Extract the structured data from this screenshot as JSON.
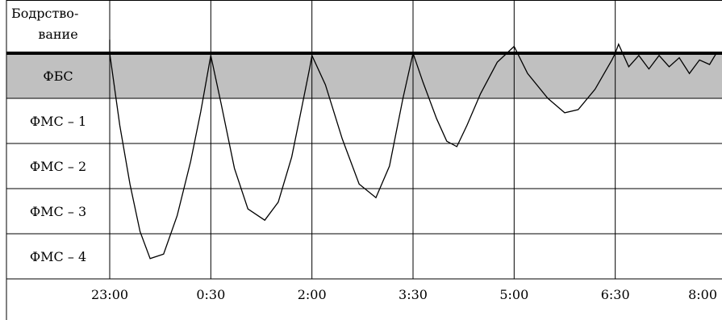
{
  "chart_data": {
    "type": "line",
    "title": "",
    "xlabel": "",
    "ylabel": "",
    "stages": [
      [
        "Бодрство-",
        "вание"
      ],
      [
        "ФБС"
      ],
      [
        "ФМС – 1"
      ],
      [
        "ФМС – 2"
      ],
      [
        "ФМС – 3"
      ],
      [
        "ФМС – 4"
      ]
    ],
    "highlight_stage_index": 1,
    "highlight_color": "#c0c0c0",
    "x_ticks": [
      "23:00",
      "0:30",
      "2:00",
      "3:30",
      "5:00",
      "6:30",
      "8:00"
    ],
    "x_range_hours": [
      23,
      32
    ],
    "y_axis_note": "depth in stage units: 0 = Бодрство-вание level line, 1 = ФБС/ФМС-1 boundary, each further unit one stage deeper",
    "series": [
      {
        "points": [
          [
            23.0,
            -0.3
          ],
          [
            23.0,
            0.0
          ],
          [
            23.15,
            1.6
          ],
          [
            23.3,
            2.9
          ],
          [
            23.45,
            3.95
          ],
          [
            23.6,
            4.55
          ],
          [
            23.8,
            4.45
          ],
          [
            24.0,
            3.6
          ],
          [
            24.2,
            2.4
          ],
          [
            24.35,
            1.3
          ],
          [
            24.5,
            0.05
          ],
          [
            24.65,
            1.1
          ],
          [
            24.85,
            2.55
          ],
          [
            25.05,
            3.45
          ],
          [
            25.3,
            3.7
          ],
          [
            25.5,
            3.3
          ],
          [
            25.7,
            2.3
          ],
          [
            25.85,
            1.2
          ],
          [
            25.97,
            0.3
          ],
          [
            26.0,
            0.05
          ],
          [
            26.2,
            0.7
          ],
          [
            26.45,
            1.9
          ],
          [
            26.7,
            2.9
          ],
          [
            26.95,
            3.2
          ],
          [
            27.15,
            2.5
          ],
          [
            27.35,
            1.0
          ],
          [
            27.5,
            0.0
          ],
          [
            27.65,
            0.65
          ],
          [
            27.85,
            1.45
          ],
          [
            28.0,
            1.95
          ],
          [
            28.15,
            2.07
          ],
          [
            28.3,
            1.6
          ],
          [
            28.5,
            0.9
          ],
          [
            28.75,
            0.2
          ],
          [
            29.0,
            -0.15
          ],
          [
            29.2,
            0.45
          ],
          [
            29.5,
            1.0
          ],
          [
            29.75,
            1.32
          ],
          [
            29.95,
            1.25
          ],
          [
            30.2,
            0.8
          ],
          [
            30.45,
            0.15
          ],
          [
            30.5,
            0.0
          ],
          [
            30.55,
            -0.2
          ],
          [
            30.7,
            0.3
          ],
          [
            30.85,
            0.05
          ],
          [
            31.0,
            0.35
          ],
          [
            31.15,
            0.05
          ],
          [
            31.3,
            0.3
          ],
          [
            31.45,
            0.1
          ],
          [
            31.6,
            0.45
          ],
          [
            31.75,
            0.15
          ],
          [
            31.9,
            0.25
          ],
          [
            32.0,
            0.0
          ]
        ]
      }
    ]
  }
}
